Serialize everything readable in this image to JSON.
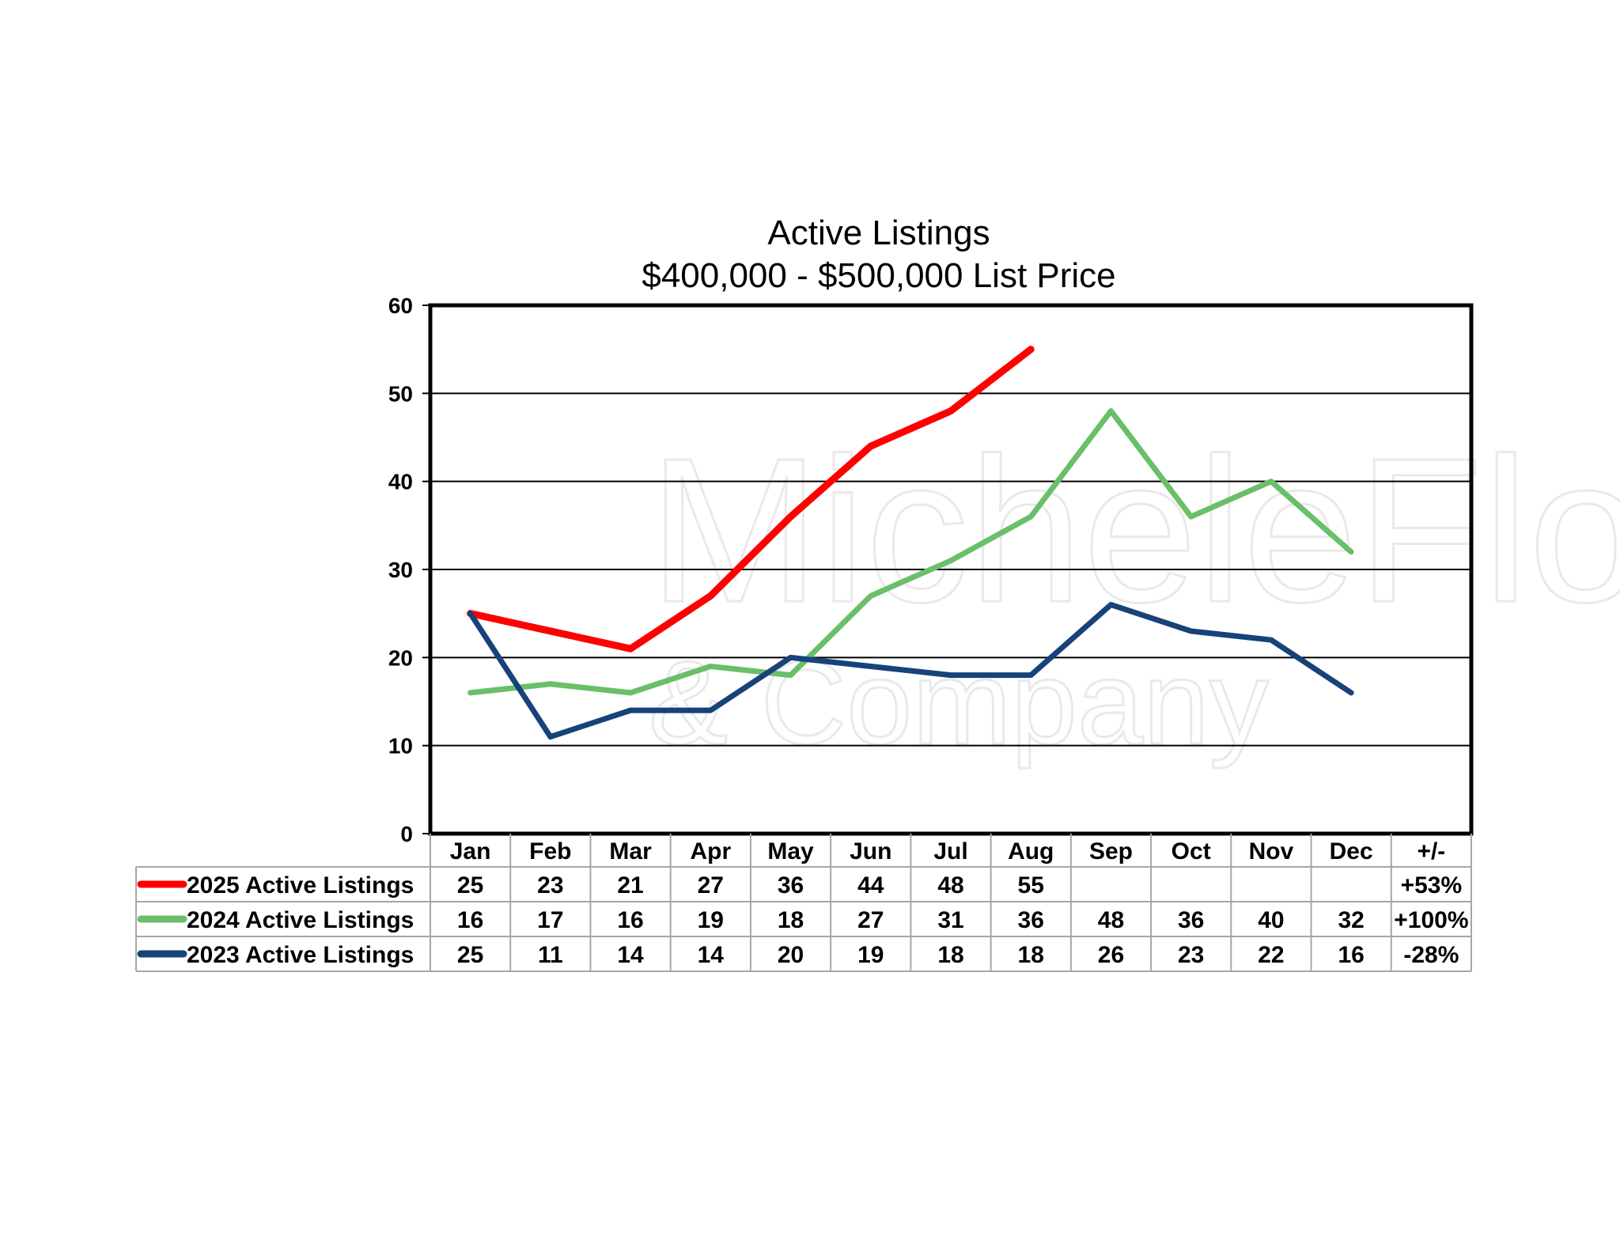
{
  "chart_data": {
    "type": "line",
    "title": "Active Listings",
    "subtitle": "$400,000 - $500,000 List Price",
    "categories": [
      "Jan",
      "Feb",
      "Mar",
      "Apr",
      "May",
      "Jun",
      "Jul",
      "Aug",
      "Sep",
      "Oct",
      "Nov",
      "Dec"
    ],
    "change_header": "+/-",
    "ylim": [
      0,
      60
    ],
    "yticks": [
      0,
      10,
      20,
      30,
      40,
      50,
      60
    ],
    "grid": true,
    "legend": "table-below",
    "series": [
      {
        "name": "2025 Active Listings",
        "color": "#ff0000",
        "values": [
          25,
          23,
          21,
          27,
          36,
          44,
          48,
          55,
          null,
          null,
          null,
          null
        ],
        "change": "+53%"
      },
      {
        "name": "2024 Active Listings",
        "color": "#6abf69",
        "values": [
          16,
          17,
          16,
          19,
          18,
          27,
          31,
          36,
          48,
          36,
          40,
          32
        ],
        "change": "+100%"
      },
      {
        "name": "2023 Active Listings",
        "color": "#17427a",
        "values": [
          25,
          11,
          14,
          14,
          20,
          19,
          18,
          18,
          26,
          23,
          22,
          16
        ],
        "change": "-28%"
      }
    ]
  },
  "watermark": {
    "line1": "MicheleFlory",
    "line2": "& Company"
  }
}
